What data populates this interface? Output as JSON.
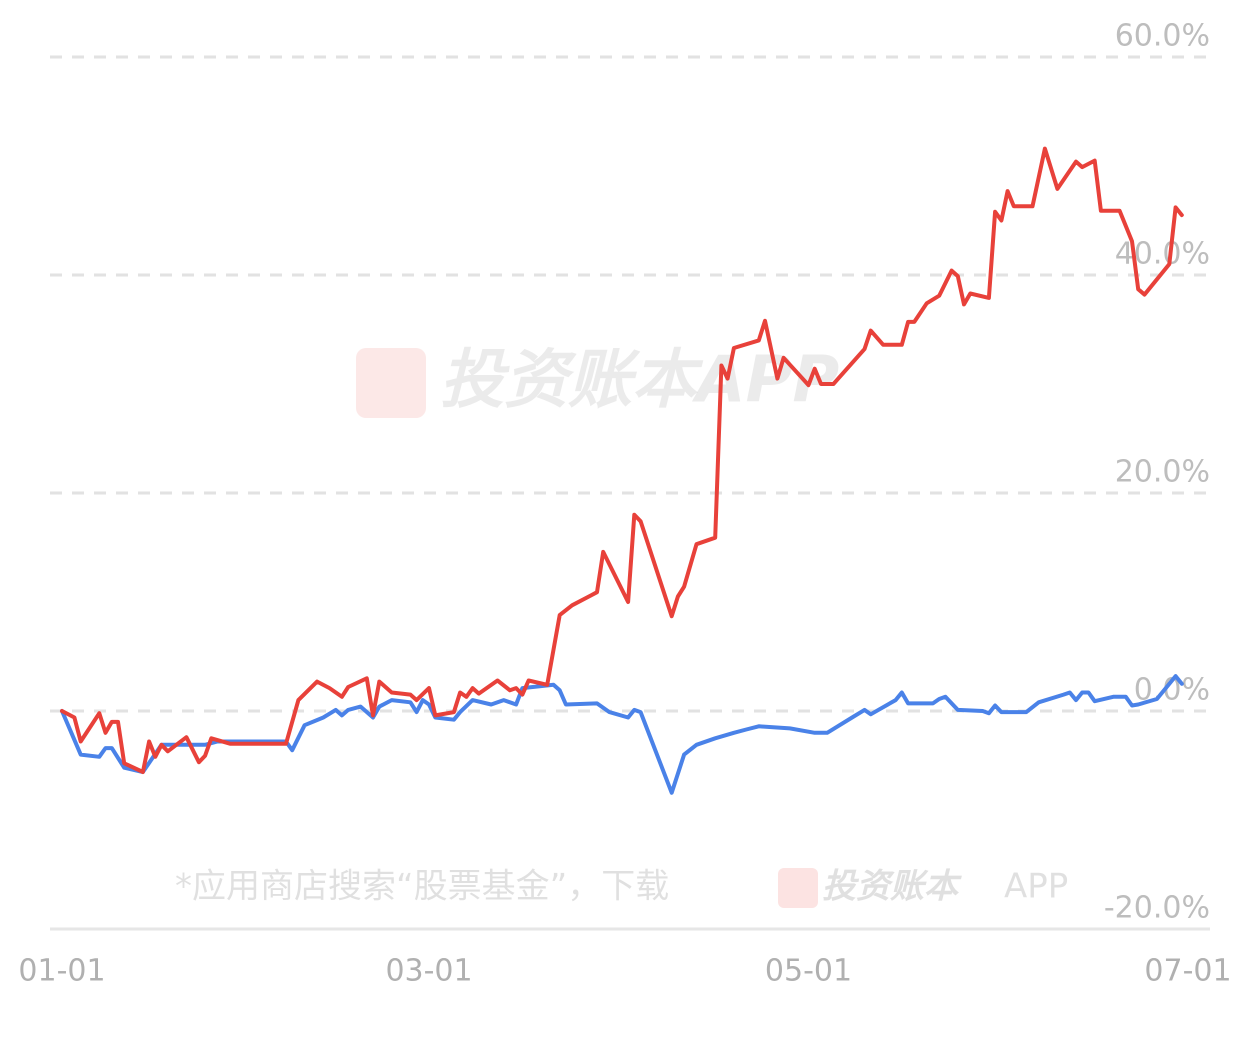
{
  "chart_data": {
    "type": "line",
    "annotations": [
      "投资账本APP",
      "*应用商店搜索“股票基金”，下载",
      "投资账本",
      "APP"
    ],
    "xlim": [
      "01-01",
      "07-01"
    ],
    "xticks": [
      "01-01",
      "03-01",
      "05-01",
      "07-01"
    ],
    "ylim": [
      -20,
      60
    ],
    "yticks": [
      {
        "value": -20,
        "label": "-20.0%"
      },
      {
        "value": 0,
        "label": "0.0%"
      },
      {
        "value": 20,
        "label": "20.0%"
      },
      {
        "value": 40,
        "label": "40.0%"
      },
      {
        "value": 60,
        "label": "60.0%"
      }
    ],
    "grid": true,
    "series": [
      {
        "color": "#e8413a",
        "x": [
          "01-01",
          "01-03",
          "01-04",
          "01-07",
          "01-08",
          "01-09",
          "01-10",
          "01-11",
          "01-14",
          "01-15",
          "01-16",
          "01-17",
          "01-18",
          "01-21",
          "01-23",
          "01-24",
          "01-25",
          "01-28",
          "02-06",
          "02-08",
          "02-11",
          "02-13",
          "02-15",
          "02-16",
          "02-19",
          "02-20",
          "02-21",
          "02-23",
          "02-26",
          "02-27",
          "03-01",
          "03-02",
          "03-05",
          "03-06",
          "03-07",
          "03-08",
          "03-09",
          "03-12",
          "03-14",
          "03-15",
          "03-16",
          "03-17",
          "03-20",
          "03-22",
          "03-24",
          "03-27",
          "03-28",
          "03-29",
          "04-02",
          "04-03",
          "04-04",
          "04-09",
          "04-10",
          "04-11",
          "04-13",
          "04-16",
          "04-17",
          "04-18",
          "04-19",
          "04-23",
          "04-24",
          "04-26",
          "04-27",
          "05-01",
          "05-02",
          "05-03",
          "05-05",
          "05-10",
          "05-11",
          "05-13",
          "05-16",
          "05-17",
          "05-18",
          "05-20",
          "05-22",
          "05-24",
          "05-25",
          "05-26",
          "05-27",
          "05-30",
          "05-31",
          "06-01",
          "06-02",
          "06-03",
          "06-06",
          "06-08",
          "06-10",
          "06-13",
          "06-14",
          "06-16",
          "06-17",
          "06-20",
          "06-22",
          "06-23",
          "06-24",
          "06-28",
          "06-29",
          "06-30"
        ],
        "values": [
          0,
          -0.6,
          -2.8,
          -0.2,
          -2.0,
          -1.0,
          -1.0,
          -4.8,
          -5.6,
          -2.8,
          -4.2,
          -3.1,
          -3.7,
          -2.4,
          -4.7,
          -4.1,
          -2.5,
          -3.0,
          -3.0,
          1.0,
          2.7,
          2.1,
          1.3,
          2.2,
          3.0,
          -0.4,
          2.7,
          1.7,
          1.5,
          1.0,
          2.1,
          -0.4,
          -0.1,
          1.7,
          1.3,
          2.1,
          1.6,
          2.8,
          1.9,
          2.1,
          1.5,
          2.8,
          2.4,
          8.8,
          9.7,
          10.6,
          10.9,
          14.6,
          10.0,
          18.0,
          17.4,
          8.7,
          10.5,
          11.4,
          15.3,
          15.9,
          31.7,
          30.5,
          33.3,
          34.0,
          35.8,
          30.5,
          32.4,
          29.9,
          31.4,
          30.0,
          30.0,
          33.2,
          34.9,
          33.6,
          33.6,
          35.7,
          35.7,
          37.4,
          38.1,
          40.4,
          39.9,
          37.3,
          38.3,
          37.9,
          45.8,
          45.0,
          47.7,
          46.3,
          46.3,
          51.6,
          47.9,
          50.4,
          49.9,
          50.5,
          45.9,
          45.9,
          43.1,
          38.7,
          38.2,
          41.0,
          46.2,
          45.5
        ]
      },
      {
        "color": "#4a82e8",
        "x": [
          "01-01",
          "01-04",
          "01-07",
          "01-08",
          "01-09",
          "01-11",
          "01-14",
          "01-17",
          "01-24",
          "01-26",
          "02-06",
          "02-07",
          "02-09",
          "02-12",
          "02-14",
          "02-15",
          "02-16",
          "02-18",
          "02-20",
          "02-21",
          "02-23",
          "02-26",
          "02-27",
          "02-28",
          "03-01",
          "03-02",
          "03-05",
          "03-06",
          "03-08",
          "03-11",
          "03-13",
          "03-15",
          "03-16",
          "03-21",
          "03-22",
          "03-23",
          "03-28",
          "03-30",
          "04-02",
          "04-03",
          "04-04",
          "04-09",
          "04-11",
          "04-13",
          "04-16",
          "04-19",
          "04-21",
          "04-23",
          "04-28",
          "05-02",
          "05-04",
          "05-08",
          "05-10",
          "05-11",
          "05-15",
          "05-16",
          "05-17",
          "05-21",
          "05-22",
          "05-23",
          "05-25",
          "05-29",
          "05-30",
          "05-31",
          "06-01",
          "06-05",
          "06-07",
          "06-11",
          "06-12",
          "06-13",
          "06-14",
          "06-15",
          "06-16",
          "06-19",
          "06-21",
          "06-22",
          "06-23",
          "06-26",
          "06-29",
          "06-30"
        ],
        "values": [
          0,
          -4.0,
          -4.2,
          -3.4,
          -3.4,
          -5.2,
          -5.6,
          -3.1,
          -3.1,
          -2.8,
          -2.8,
          -3.6,
          -1.3,
          -0.6,
          0.1,
          -0.4,
          0.1,
          0.4,
          -0.6,
          0.4,
          1.0,
          0.8,
          -0.1,
          1.0,
          0.6,
          -0.6,
          -0.8,
          -0.1,
          1.0,
          0.6,
          1.0,
          0.6,
          2.1,
          2.4,
          1.9,
          0.6,
          0.7,
          -0.1,
          -0.6,
          0.1,
          -0.1,
          -7.5,
          -4.0,
          -3.1,
          -2.5,
          -2.0,
          -1.7,
          -1.4,
          -1.6,
          -2.0,
          -2.0,
          -0.6,
          0.1,
          -0.3,
          1.0,
          1.7,
          0.7,
          0.7,
          1.1,
          1.3,
          0.1,
          0.0,
          -0.2,
          0.5,
          -0.1,
          -0.1,
          0.8,
          1.5,
          1.7,
          1.0,
          1.7,
          1.7,
          0.9,
          1.3,
          1.3,
          0.5,
          0.6,
          1.1,
          3.2,
          2.5
        ]
      }
    ]
  }
}
